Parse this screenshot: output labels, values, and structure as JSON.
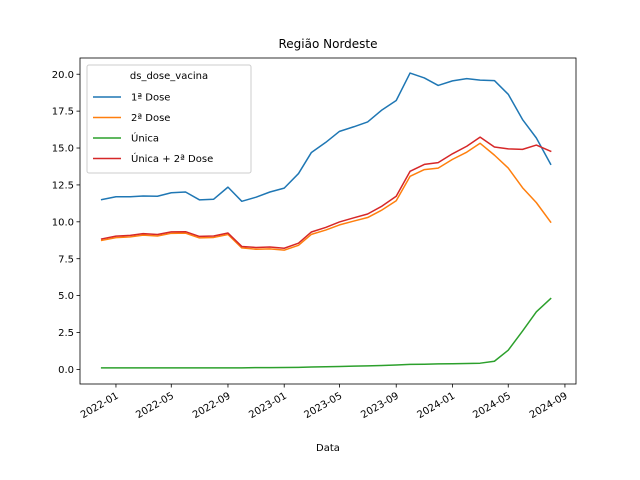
{
  "chart_data": {
    "type": "line",
    "title": "Região Nordeste",
    "xlabel": "Data",
    "ylabel": "",
    "xlim": [
      "2021-10-15",
      "2024-09-25"
    ],
    "ylim": [
      -0.99,
      21.1
    ],
    "x_ticks": [
      {
        "date": "2022-01-01",
        "label": "2022-01"
      },
      {
        "date": "2022-05-01",
        "label": "2022-05"
      },
      {
        "date": "2022-09-01",
        "label": "2022-09"
      },
      {
        "date": "2023-01-01",
        "label": "2023-01"
      },
      {
        "date": "2023-05-01",
        "label": "2023-05"
      },
      {
        "date": "2023-09-01",
        "label": "2023-09"
      },
      {
        "date": "2024-01-01",
        "label": "2024-01"
      },
      {
        "date": "2024-05-01",
        "label": "2024-05"
      },
      {
        "date": "2024-09-01",
        "label": "2024-09"
      }
    ],
    "y_ticks": [
      {
        "value": 0.0,
        "label": "0.0"
      },
      {
        "value": 2.5,
        "label": "2.5"
      },
      {
        "value": 5.0,
        "label": "5.0"
      },
      {
        "value": 7.5,
        "label": "7.5"
      },
      {
        "value": 10.0,
        "label": "10.0"
      },
      {
        "value": 12.5,
        "label": "12.5"
      },
      {
        "value": 15.0,
        "label": "15.0"
      },
      {
        "value": 17.5,
        "label": "17.5"
      },
      {
        "value": 20.0,
        "label": "20.0"
      }
    ],
    "x": [
      "2021-12-01",
      "2022-01-01",
      "2022-02-01",
      "2022-03-01",
      "2022-04-01",
      "2022-05-01",
      "2022-06-01",
      "2022-07-01",
      "2022-08-01",
      "2022-09-01",
      "2022-10-01",
      "2022-11-01",
      "2022-12-01",
      "2023-01-01",
      "2023-02-01",
      "2023-03-01",
      "2023-04-01",
      "2023-05-01",
      "2023-06-01",
      "2023-07-01",
      "2023-08-01",
      "2023-09-01",
      "2023-10-01",
      "2023-11-01",
      "2023-12-01",
      "2024-01-01",
      "2024-02-01",
      "2024-03-01",
      "2024-04-01",
      "2024-05-01",
      "2024-06-01",
      "2024-07-01",
      "2024-08-01"
    ],
    "legend": {
      "title": "ds_dose_vacina",
      "placement": "upper-left"
    },
    "grid": false,
    "series": [
      {
        "name": "1ª Dose",
        "color": "#1f77b4",
        "values": [
          11.5,
          11.7,
          11.7,
          11.75,
          11.73,
          11.97,
          12.02,
          11.49,
          11.53,
          12.35,
          11.39,
          11.67,
          12.02,
          12.28,
          13.27,
          14.7,
          15.38,
          16.13,
          16.44,
          16.77,
          17.58,
          18.22,
          20.08,
          19.75,
          19.24,
          19.55,
          19.7,
          19.6,
          19.57,
          18.64,
          16.93,
          15.68,
          13.9
        ]
      },
      {
        "name": "2ª Dose",
        "color": "#ff7f0e",
        "values": [
          8.74,
          8.93,
          8.98,
          9.1,
          9.04,
          9.22,
          9.23,
          8.91,
          8.94,
          9.14,
          8.23,
          8.14,
          8.17,
          8.08,
          8.41,
          9.15,
          9.44,
          9.79,
          10.05,
          10.29,
          10.8,
          11.43,
          13.08,
          13.54,
          13.64,
          14.23,
          14.72,
          15.32,
          14.52,
          13.64,
          12.31,
          11.3,
          9.98
        ]
      },
      {
        "name": "Única",
        "color": "#2ca02c",
        "values": [
          0.1,
          0.1,
          0.1,
          0.1,
          0.1,
          0.1,
          0.1,
          0.1,
          0.1,
          0.1,
          0.1,
          0.12,
          0.12,
          0.13,
          0.14,
          0.16,
          0.18,
          0.2,
          0.22,
          0.24,
          0.26,
          0.3,
          0.34,
          0.35,
          0.37,
          0.38,
          0.4,
          0.42,
          0.55,
          1.3,
          2.6,
          3.9,
          4.8
        ]
      },
      {
        "name": "Única + 2ª Dose",
        "color": "#d62728",
        "values": [
          8.84,
          9.03,
          9.08,
          9.2,
          9.14,
          9.32,
          9.33,
          9.01,
          9.04,
          9.24,
          8.33,
          8.26,
          8.29,
          8.21,
          8.55,
          9.31,
          9.62,
          9.99,
          10.27,
          10.53,
          11.06,
          11.73,
          13.42,
          13.89,
          14.01,
          14.61,
          15.12,
          15.74,
          15.07,
          14.94,
          14.91,
          15.2,
          14.78
        ]
      }
    ]
  }
}
